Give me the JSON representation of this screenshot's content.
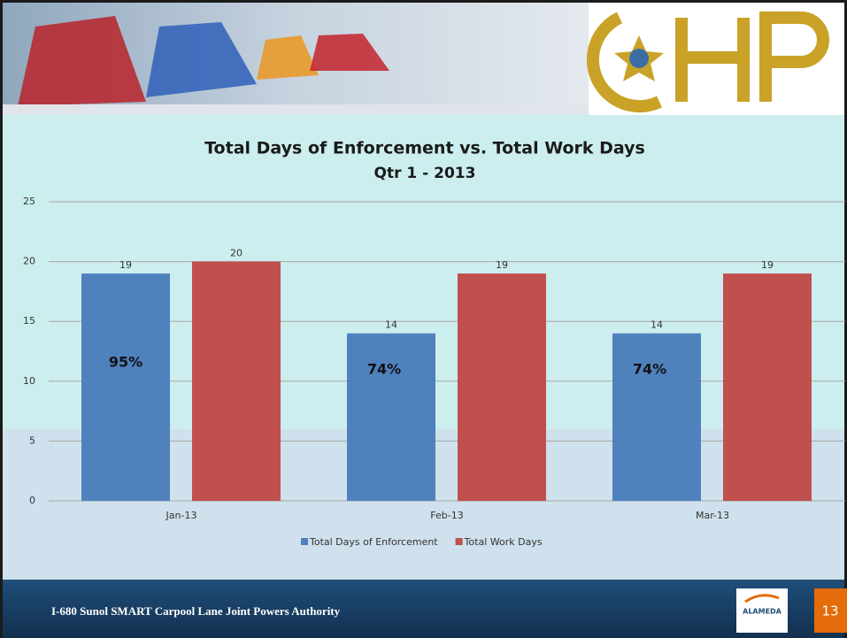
{
  "chart_data": {
    "type": "bar",
    "title": "Total Days of Enforcement vs. Total Work Days",
    "subtitle": "Qtr 1 - 2013",
    "categories": [
      "Jan-13",
      "Feb-13",
      "Mar-13"
    ],
    "series": [
      {
        "name": "Total Days of Enforcement",
        "color": "#4f81bd",
        "values": [
          19,
          14,
          14
        ]
      },
      {
        "name": "Total Work Days",
        "color": "#c0504d",
        "values": [
          20,
          19,
          19
        ]
      }
    ],
    "annotations": [
      "95%",
      "74%",
      "74%"
    ],
    "ylim": [
      0,
      25
    ],
    "yticks": [
      0,
      5,
      10,
      15,
      20,
      25
    ],
    "grid": true,
    "legend": "bottom"
  },
  "footer": {
    "text": "I-680 Sunol SMART Carpool Lane Joint Powers Authority",
    "logo": "ALAMEDA",
    "page_number": "13"
  }
}
